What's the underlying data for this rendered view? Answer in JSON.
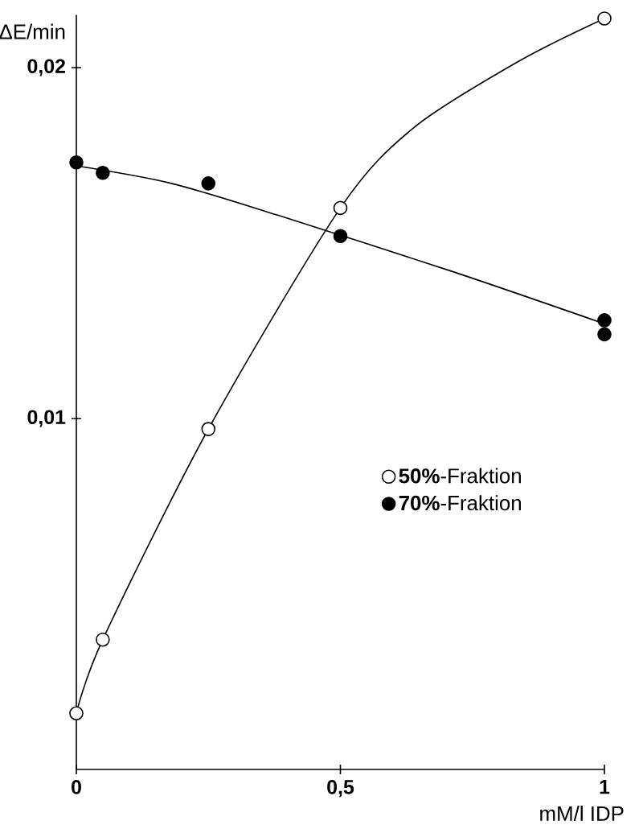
{
  "chart_data": {
    "type": "scatter",
    "xlabel": "mM/l IDP",
    "ylabel": "ΔE/min",
    "xlim": [
      0,
      1
    ],
    "ylim": [
      0,
      0.0215
    ],
    "xticks": [
      0,
      {
        "value": 0.5,
        "label": "0,5"
      },
      1
    ],
    "yticks": [
      {
        "value": 0.01,
        "label": "0,01"
      },
      {
        "value": 0.02,
        "label": "0,02"
      }
    ],
    "marker": "circle",
    "line_style": "solid",
    "legend": "right",
    "series": [
      {
        "type": "line",
        "marker": "none",
        "color": "#000000",
        "x": [
          0,
          0.05,
          0.25,
          0.5,
          0.64,
          0.84,
          1
        ],
        "values": [
          0.0016,
          0.0037,
          0.0097,
          0.016,
          0.0183,
          0.0202,
          0.0214
        ]
      },
      {
        "type": "line",
        "marker": "none",
        "color": "#000000",
        "x": [
          0,
          0.18,
          0.38,
          0.71,
          1
        ],
        "values": [
          0.0172,
          0.0167,
          0.0158,
          0.0142,
          0.0127
        ]
      },
      {
        "name": "**50%**-Fraktion",
        "color": "#ffffff",
        "x": [
          0,
          0.05,
          0.25,
          0.5,
          1
        ],
        "values": [
          0.0016,
          0.0037,
          0.0097,
          0.016,
          0.0214
        ]
      },
      {
        "name": "**70%**-Fraktion",
        "color": "#000000",
        "x": [
          0,
          0.05,
          0.25,
          0.5,
          1,
          1
        ],
        "values": [
          0.0173,
          0.017,
          0.0167,
          0.0152,
          0.0128,
          0.0124
        ]
      }
    ]
  }
}
